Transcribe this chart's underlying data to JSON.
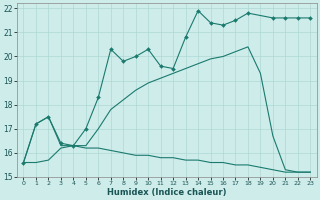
{
  "xlabel": "Humidex (Indice chaleur)",
  "background_color": "#ceecea",
  "grid_color": "#aed8d5",
  "line_color": "#1a7a6e",
  "xlim": [
    -0.5,
    23.5
  ],
  "ylim": [
    15,
    22.2
  ],
  "xtick_labels": [
    "0",
    "1",
    "2",
    "3",
    "4",
    "5",
    "6",
    "7",
    "8",
    "9",
    "10",
    "11",
    "12",
    "13",
    "14",
    "15",
    "16",
    "17",
    "18",
    "19",
    "20",
    "21",
    "22",
    "23"
  ],
  "xtick_pos": [
    0,
    1,
    2,
    3,
    4,
    5,
    6,
    7,
    8,
    9,
    10,
    11,
    12,
    13,
    14,
    15,
    16,
    17,
    18,
    19,
    20,
    21,
    22,
    23
  ],
  "ytick_labels": [
    "15",
    "16",
    "17",
    "18",
    "19",
    "20",
    "21",
    "22"
  ],
  "ytick_pos": [
    15,
    16,
    17,
    18,
    19,
    20,
    21,
    22
  ],
  "s1_x": [
    0,
    1,
    2,
    3,
    4,
    5,
    6,
    7,
    8,
    9,
    10,
    11,
    12,
    13,
    14,
    15,
    16,
    17,
    18,
    20,
    21,
    22,
    23
  ],
  "s1_y": [
    15.6,
    17.2,
    17.5,
    16.4,
    16.3,
    17.0,
    18.3,
    20.3,
    19.8,
    20.0,
    20.3,
    19.6,
    19.5,
    20.8,
    21.9,
    21.4,
    21.3,
    21.5,
    21.8,
    21.6,
    21.6,
    21.6,
    21.6
  ],
  "s2_x": [
    0,
    1,
    2,
    3,
    4,
    5,
    6,
    7,
    8,
    9,
    10,
    11,
    12,
    13,
    14,
    15,
    16,
    17,
    18,
    19,
    20,
    21,
    22,
    23
  ],
  "s2_y": [
    15.6,
    17.2,
    17.5,
    16.3,
    16.3,
    16.3,
    17.0,
    17.8,
    18.2,
    18.6,
    18.9,
    19.1,
    19.3,
    19.5,
    19.7,
    19.9,
    20.0,
    20.2,
    20.4,
    19.3,
    16.7,
    15.3,
    15.2,
    15.2
  ],
  "s3_x": [
    0,
    1,
    2,
    3,
    4,
    5,
    6,
    7,
    8,
    9,
    10,
    11,
    12,
    13,
    14,
    15,
    16,
    17,
    18,
    19,
    20,
    21,
    22,
    23
  ],
  "s3_y": [
    15.6,
    15.6,
    15.7,
    16.2,
    16.3,
    16.2,
    16.2,
    16.1,
    16.0,
    15.9,
    15.9,
    15.8,
    15.8,
    15.7,
    15.7,
    15.6,
    15.6,
    15.5,
    15.5,
    15.4,
    15.3,
    15.2,
    15.2,
    15.2
  ]
}
